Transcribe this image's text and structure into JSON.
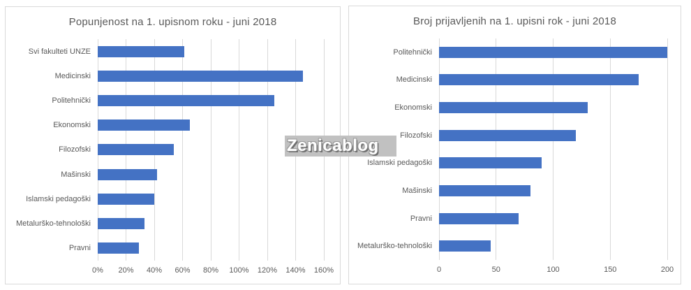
{
  "watermark": {
    "text": "Zenicablog",
    "background": "#c1c1c1",
    "text_color": "#ffffff"
  },
  "colors": {
    "bar": "#4472c4",
    "title_text": "#595959",
    "axis_text": "#595959",
    "gridline": "#d9d9d9",
    "panel_border": "#d9d9d9",
    "panel_background": "#ffffff"
  },
  "chart_data": [
    {
      "type": "bar",
      "orientation": "horizontal",
      "title": "Popunjenost na 1. upisnom roku - juni 2018",
      "categories": [
        "Svi fakulteti UNZE",
        "Medicinski",
        "Politehnički",
        "Ekonomski",
        "Filozofski",
        "Mašinski",
        "Islamski pedagoški",
        "Metalurško-tehnološki",
        "Pravni"
      ],
      "values": [
        61,
        145,
        125,
        65,
        54,
        42,
        40,
        33,
        29
      ],
      "value_unit": "%",
      "xlabel": "",
      "ylabel": "",
      "xlim": [
        0,
        160
      ],
      "ticks": [
        0,
        20,
        40,
        60,
        80,
        100,
        120,
        140,
        160
      ],
      "tick_labels": [
        "0%",
        "20%",
        "40%",
        "60%",
        "80%",
        "100%",
        "120%",
        "140%",
        "160%"
      ],
      "grid": true,
      "legend": "none",
      "bar_color": "#4472c4"
    },
    {
      "type": "bar",
      "orientation": "horizontal",
      "title": "Broj prijavljenih na 1. upisni rok - juni 2018",
      "categories": [
        "Politehnički",
        "Medicinski",
        "Ekonomski",
        "Filozofski",
        "Islamski pedagoški",
        "Mašinski",
        "Pravni",
        "Metalurško-tehnološki"
      ],
      "values": [
        200,
        175,
        130,
        120,
        90,
        80,
        70,
        45
      ],
      "value_unit": "",
      "xlabel": "",
      "ylabel": "",
      "xlim": [
        0,
        200
      ],
      "ticks": [
        0,
        50,
        100,
        150,
        200
      ],
      "tick_labels": [
        "0",
        "50",
        "100",
        "150",
        "200"
      ],
      "grid": true,
      "legend": "none",
      "bar_color": "#4472c4"
    }
  ]
}
